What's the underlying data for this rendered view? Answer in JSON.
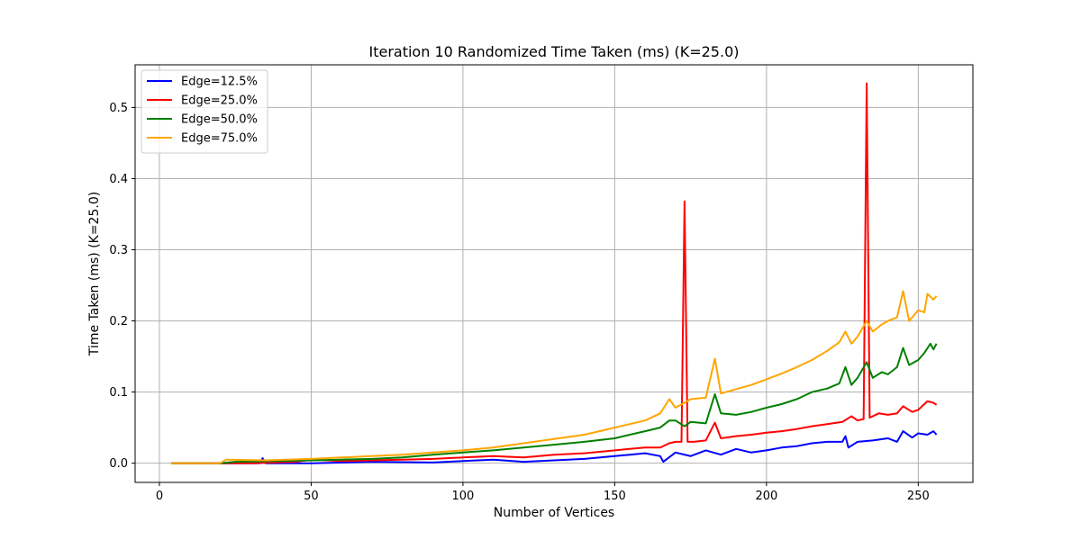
{
  "chart_data": {
    "type": "line",
    "title": "Iteration 10 Randomized Time Taken (ms) (K=25.0)",
    "xlabel": "Number of Vertices",
    "ylabel": "Time Taken (ms) (K=25.0)",
    "xlim": [
      -8,
      268
    ],
    "ylim": [
      -0.027,
      0.56
    ],
    "xticks": [
      0,
      50,
      100,
      150,
      200,
      250
    ],
    "xtick_labels": [
      "0",
      "50",
      "100",
      "150",
      "200",
      "250"
    ],
    "yticks": [
      0.0,
      0.1,
      0.2,
      0.3,
      0.4,
      0.5
    ],
    "ytick_labels": [
      "0.0",
      "0.1",
      "0.2",
      "0.3",
      "0.4",
      "0.5"
    ],
    "grid": true,
    "legend_position": "top-left",
    "series": [
      {
        "name": "Edge=12.5%",
        "color": "#0000ff",
        "points": [
          [
            4,
            0
          ],
          [
            20,
            0
          ],
          [
            33,
            0.0
          ],
          [
            34,
            0.007
          ],
          [
            35,
            0.0
          ],
          [
            50,
            0.0
          ],
          [
            70,
            0.002
          ],
          [
            90,
            0.001
          ],
          [
            100,
            0.003
          ],
          [
            110,
            0.005
          ],
          [
            120,
            0.002
          ],
          [
            130,
            0.004
          ],
          [
            140,
            0.006
          ],
          [
            150,
            0.01
          ],
          [
            155,
            0.012
          ],
          [
            160,
            0.014
          ],
          [
            165,
            0.01
          ],
          [
            166,
            0.002
          ],
          [
            170,
            0.015
          ],
          [
            175,
            0.01
          ],
          [
            180,
            0.018
          ],
          [
            185,
            0.012
          ],
          [
            190,
            0.02
          ],
          [
            195,
            0.015
          ],
          [
            200,
            0.018
          ],
          [
            205,
            0.022
          ],
          [
            210,
            0.024
          ],
          [
            215,
            0.028
          ],
          [
            220,
            0.03
          ],
          [
            225,
            0.03
          ],
          [
            226,
            0.038
          ],
          [
            227,
            0.022
          ],
          [
            230,
            0.03
          ],
          [
            235,
            0.032
          ],
          [
            240,
            0.035
          ],
          [
            243,
            0.03
          ],
          [
            245,
            0.045
          ],
          [
            248,
            0.036
          ],
          [
            250,
            0.042
          ],
          [
            253,
            0.04
          ],
          [
            255,
            0.045
          ],
          [
            256,
            0.04
          ]
        ]
      },
      {
        "name": "Edge=25.0%",
        "color": "#ff0000",
        "points": [
          [
            4,
            0
          ],
          [
            20,
            0
          ],
          [
            30,
            0.0
          ],
          [
            45,
            0.002
          ],
          [
            50,
            0.005
          ],
          [
            60,
            0.003
          ],
          [
            70,
            0.004
          ],
          [
            80,
            0.005
          ],
          [
            90,
            0.006
          ],
          [
            100,
            0.008
          ],
          [
            110,
            0.01
          ],
          [
            120,
            0.008
          ],
          [
            130,
            0.012
          ],
          [
            140,
            0.014
          ],
          [
            150,
            0.018
          ],
          [
            155,
            0.02
          ],
          [
            160,
            0.022
          ],
          [
            165,
            0.022
          ],
          [
            168,
            0.028
          ],
          [
            170,
            0.03
          ],
          [
            172,
            0.03
          ],
          [
            173,
            0.368
          ],
          [
            174,
            0.03
          ],
          [
            176,
            0.03
          ],
          [
            180,
            0.032
          ],
          [
            183,
            0.057
          ],
          [
            185,
            0.035
          ],
          [
            190,
            0.038
          ],
          [
            195,
            0.04
          ],
          [
            200,
            0.043
          ],
          [
            205,
            0.045
          ],
          [
            210,
            0.048
          ],
          [
            215,
            0.052
          ],
          [
            220,
            0.055
          ],
          [
            225,
            0.058
          ],
          [
            228,
            0.066
          ],
          [
            230,
            0.06
          ],
          [
            232,
            0.062
          ],
          [
            233,
            0.534
          ],
          [
            234,
            0.064
          ],
          [
            237,
            0.07
          ],
          [
            240,
            0.068
          ],
          [
            243,
            0.07
          ],
          [
            245,
            0.08
          ],
          [
            248,
            0.072
          ],
          [
            250,
            0.075
          ],
          [
            253,
            0.087
          ],
          [
            255,
            0.085
          ],
          [
            256,
            0.082
          ]
        ]
      },
      {
        "name": "Edge=50.0%",
        "color": "#008000",
        "points": [
          [
            4,
            0
          ],
          [
            20,
            0
          ],
          [
            25,
            0.002
          ],
          [
            40,
            0.003
          ],
          [
            50,
            0.004
          ],
          [
            60,
            0.005
          ],
          [
            70,
            0.006
          ],
          [
            80,
            0.008
          ],
          [
            90,
            0.012
          ],
          [
            100,
            0.015
          ],
          [
            110,
            0.018
          ],
          [
            120,
            0.022
          ],
          [
            130,
            0.026
          ],
          [
            140,
            0.03
          ],
          [
            150,
            0.035
          ],
          [
            155,
            0.04
          ],
          [
            160,
            0.045
          ],
          [
            165,
            0.05
          ],
          [
            168,
            0.06
          ],
          [
            170,
            0.06
          ],
          [
            173,
            0.052
          ],
          [
            175,
            0.058
          ],
          [
            180,
            0.056
          ],
          [
            183,
            0.097
          ],
          [
            185,
            0.07
          ],
          [
            190,
            0.068
          ],
          [
            195,
            0.072
          ],
          [
            200,
            0.078
          ],
          [
            205,
            0.083
          ],
          [
            210,
            0.09
          ],
          [
            215,
            0.1
          ],
          [
            220,
            0.105
          ],
          [
            224,
            0.112
          ],
          [
            226,
            0.135
          ],
          [
            228,
            0.11
          ],
          [
            230,
            0.12
          ],
          [
            233,
            0.142
          ],
          [
            235,
            0.12
          ],
          [
            238,
            0.128
          ],
          [
            240,
            0.125
          ],
          [
            243,
            0.135
          ],
          [
            245,
            0.162
          ],
          [
            247,
            0.138
          ],
          [
            250,
            0.145
          ],
          [
            252,
            0.155
          ],
          [
            254,
            0.168
          ],
          [
            255,
            0.16
          ],
          [
            256,
            0.168
          ]
        ]
      },
      {
        "name": "Edge=75.0%",
        "color": "#ffa500",
        "points": [
          [
            4,
            0
          ],
          [
            20,
            0
          ],
          [
            22,
            0.005
          ],
          [
            35,
            0.004
          ],
          [
            50,
            0.006
          ],
          [
            60,
            0.008
          ],
          [
            70,
            0.01
          ],
          [
            80,
            0.012
          ],
          [
            90,
            0.015
          ],
          [
            100,
            0.018
          ],
          [
            110,
            0.022
          ],
          [
            120,
            0.028
          ],
          [
            130,
            0.034
          ],
          [
            140,
            0.04
          ],
          [
            150,
            0.05
          ],
          [
            155,
            0.055
          ],
          [
            160,
            0.06
          ],
          [
            165,
            0.07
          ],
          [
            168,
            0.09
          ],
          [
            170,
            0.078
          ],
          [
            173,
            0.085
          ],
          [
            175,
            0.09
          ],
          [
            180,
            0.092
          ],
          [
            183,
            0.147
          ],
          [
            185,
            0.098
          ],
          [
            190,
            0.104
          ],
          [
            195,
            0.11
          ],
          [
            200,
            0.118
          ],
          [
            205,
            0.126
          ],
          [
            210,
            0.135
          ],
          [
            215,
            0.145
          ],
          [
            220,
            0.158
          ],
          [
            224,
            0.17
          ],
          [
            226,
            0.185
          ],
          [
            228,
            0.168
          ],
          [
            230,
            0.178
          ],
          [
            233,
            0.2
          ],
          [
            235,
            0.185
          ],
          [
            238,
            0.195
          ],
          [
            240,
            0.2
          ],
          [
            243,
            0.205
          ],
          [
            245,
            0.242
          ],
          [
            247,
            0.2
          ],
          [
            250,
            0.215
          ],
          [
            252,
            0.212
          ],
          [
            253,
            0.238
          ],
          [
            255,
            0.23
          ],
          [
            256,
            0.235
          ]
        ]
      }
    ]
  }
}
